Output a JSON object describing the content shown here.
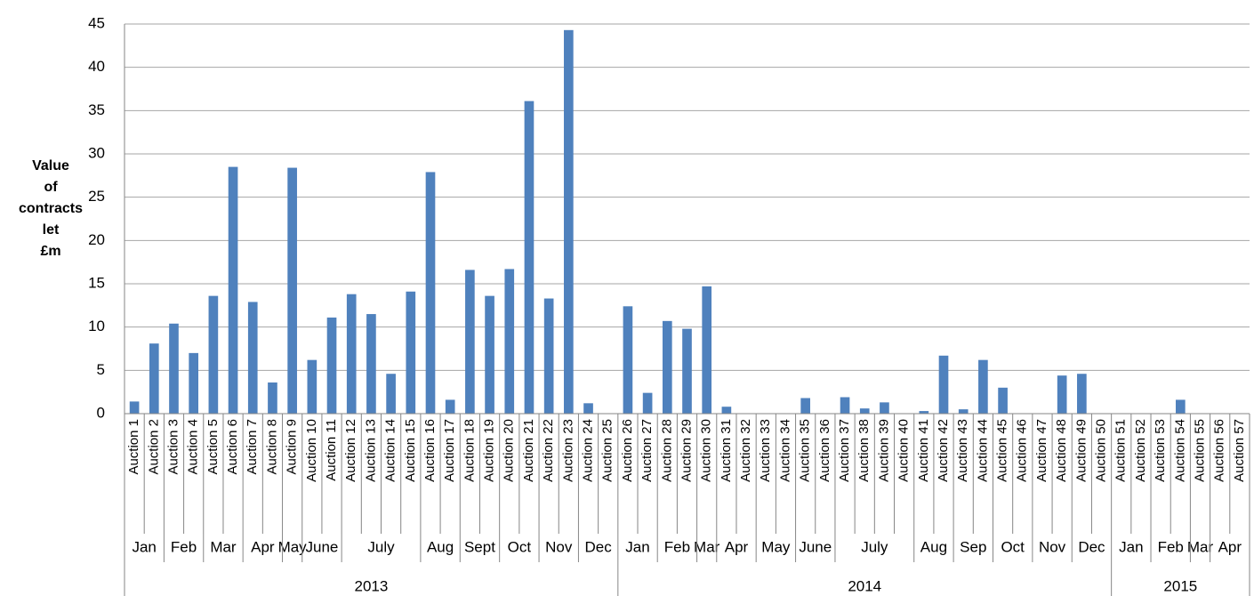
{
  "chart_data": {
    "type": "bar",
    "y_label": "Value of contracts let £m",
    "color": "#4f81bd",
    "grid": true,
    "ylim": [
      0,
      45
    ],
    "yticks": [
      0,
      5,
      10,
      15,
      20,
      25,
      30,
      35,
      40,
      45
    ],
    "categories": [
      "Auction 1",
      "Auction 2",
      "Auction 3",
      "Auction 4",
      "Auction 5",
      "Auction 6",
      "Auction 7",
      "Auction 8",
      "Auction 9",
      "Auction 10",
      "Auction 11",
      "Auction 12",
      "Auction 13",
      "Auction 14",
      "Auction 15",
      "Auction 16",
      "Auction 17",
      "Auction 18",
      "Auction 19",
      "Auction 20",
      "Auction 21",
      "Auction 22",
      "Auction 23",
      "Auction 24",
      "Auction 25",
      "Auction 26",
      "Auction 27",
      "Auction 28",
      "Auction 29",
      "Auction 30",
      "Auction 31",
      "Auction 32",
      "Auction 33",
      "Auction 34",
      "Auction 35",
      "Auction 36",
      "Auction 37",
      "Auction 38",
      "Auction 39",
      "Auction 40",
      "Auction 41",
      "Auction 42",
      "Auction 43",
      "Auction 44",
      "Auction 45",
      "Auction 46",
      "Auction 47",
      "Auction 48",
      "Auction 49",
      "Auction 50",
      "Auction 51",
      "Auction 52",
      "Auction 53",
      "Auction 54",
      "Auction 55",
      "Auction 56",
      "Auction 57"
    ],
    "category_months": [
      "Jan",
      null,
      "Feb",
      null,
      "Mar",
      null,
      "Apr",
      null,
      "May",
      "June",
      null,
      "July",
      null,
      null,
      null,
      "Aug",
      null,
      "Sept",
      null,
      "Oct",
      null,
      "Nov",
      null,
      "Dec",
      null,
      "Jan",
      null,
      "Feb",
      null,
      "Mar",
      "Apr",
      null,
      "May",
      null,
      "June",
      null,
      "July",
      null,
      null,
      null,
      "Aug",
      null,
      "Sep",
      null,
      "Oct",
      null,
      "Nov",
      null,
      "Dec",
      null,
      "Jan",
      null,
      "Feb",
      null,
      "Mar",
      "Apr",
      null
    ],
    "category_years": [
      "2013",
      null,
      null,
      null,
      null,
      null,
      null,
      null,
      null,
      null,
      null,
      null,
      null,
      null,
      null,
      null,
      null,
      null,
      null,
      null,
      null,
      null,
      null,
      null,
      null,
      "2014",
      null,
      null,
      null,
      null,
      null,
      null,
      null,
      null,
      null,
      null,
      null,
      null,
      null,
      null,
      null,
      null,
      null,
      null,
      null,
      null,
      null,
      null,
      null,
      null,
      "2015",
      null,
      null,
      null,
      null,
      null,
      null
    ],
    "values": [
      1.4,
      8.1,
      10.4,
      7.0,
      13.6,
      28.5,
      12.9,
      3.6,
      28.4,
      6.2,
      11.1,
      13.8,
      11.5,
      4.6,
      14.1,
      27.9,
      1.6,
      16.6,
      13.6,
      16.7,
      36.1,
      13.3,
      44.3,
      1.2,
      0,
      12.4,
      2.4,
      10.7,
      9.8,
      14.7,
      0.8,
      0,
      0,
      0,
      1.8,
      0,
      1.9,
      0.6,
      1.3,
      0,
      0.3,
      6.7,
      0.5,
      6.2,
      3.0,
      0,
      0,
      4.4,
      4.6,
      0,
      0,
      0,
      0,
      1.6,
      0,
      0,
      0
    ]
  }
}
